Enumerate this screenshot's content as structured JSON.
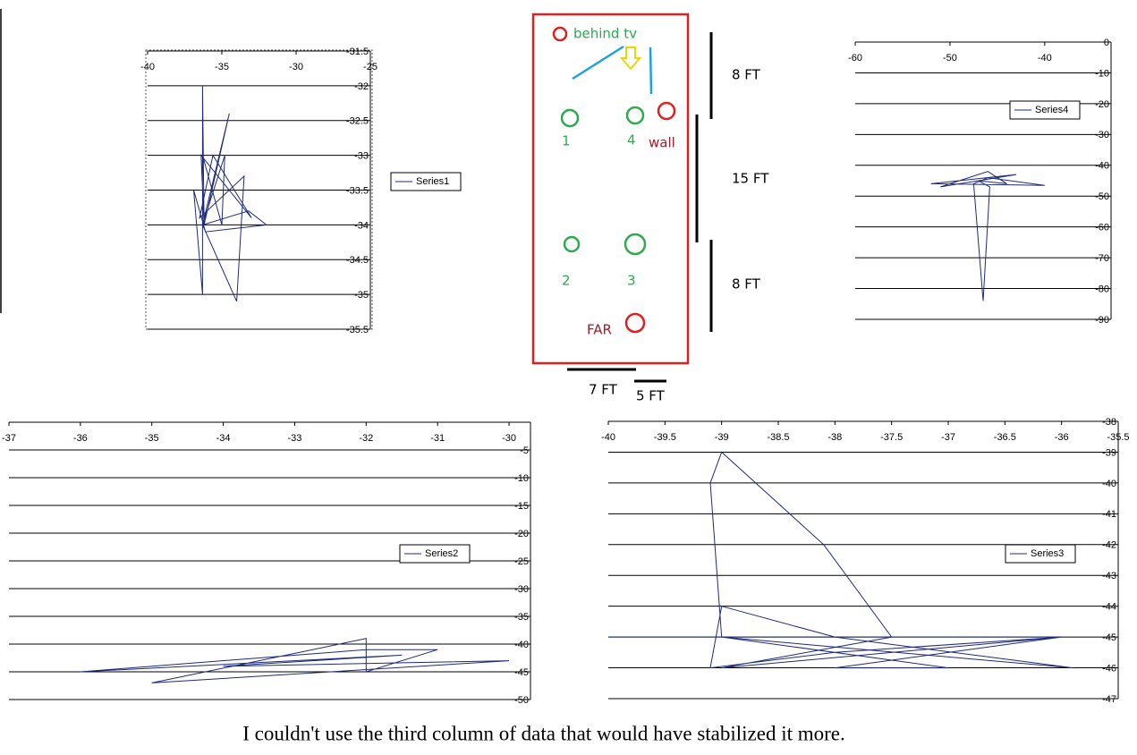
{
  "chart_data": [
    {
      "type": "line",
      "xlim": [
        -40,
        -25
      ],
      "xticks": [
        -40,
        -35,
        -30,
        -25
      ],
      "ylim": [
        -35.5,
        -31.5
      ],
      "yticks": [
        -31.5,
        -32,
        -32.5,
        -33,
        -33.5,
        -34,
        -34.5,
        -35,
        -35.5
      ],
      "grid": true,
      "series": [
        {
          "name": "Series1",
          "color": "#1f2a7a",
          "x": [
            -36.3,
            -36.3,
            -36.2,
            -36.4,
            -33.0,
            -35.6,
            -36.5,
            -33.5,
            -34.0,
            -36.3,
            -33.2,
            -32.0,
            -36.1,
            -36.9,
            -36.3,
            -36.3,
            -35.0,
            -34.8,
            -36.3,
            -34.5,
            -36.2
          ],
          "values": [
            -34.0,
            -32.0,
            -34.0,
            -33.0,
            -33.9,
            -33.0,
            -33.9,
            -33.3,
            -35.1,
            -34.0,
            -33.8,
            -34.0,
            -34.1,
            -33.5,
            -35.0,
            -33.0,
            -34.0,
            -33.0,
            -34.0,
            -32.4,
            -34.0
          ]
        }
      ]
    },
    {
      "type": "line",
      "xlim": [
        -37,
        -29.7
      ],
      "xticks": [
        -37,
        -36,
        -35,
        -34,
        -33,
        -32,
        -31,
        -30
      ],
      "ylim": [
        -50,
        0
      ],
      "yticks": [
        -5,
        -10,
        -15,
        -20,
        -25,
        -30,
        -35,
        -40,
        -45,
        -50
      ],
      "grid": true,
      "series": [
        {
          "name": "Series2",
          "color": "#1f2a7a",
          "x": [
            -36.0,
            -32.0,
            -31.0,
            -32.0,
            -32.0,
            -35.0,
            -30.0,
            -34.0,
            -31.5,
            -36.0
          ],
          "values": [
            -45.0,
            -41.0,
            -41.0,
            -45.0,
            -39.0,
            -47.0,
            -43.0,
            -44.0,
            -42.0,
            -45.0
          ]
        }
      ]
    },
    {
      "type": "line",
      "xlim": [
        -40,
        -35.5
      ],
      "xticks": [
        -40,
        -39.5,
        -39,
        -38.5,
        -38,
        -37.5,
        -37,
        -36.5,
        -36,
        -35.5
      ],
      "ylim": [
        -47,
        -38
      ],
      "yticks": [
        -38,
        -39,
        -40,
        -41,
        -42,
        -43,
        -44,
        -45,
        -46,
        -47
      ],
      "grid": true,
      "series": [
        {
          "name": "Series3",
          "color": "#1f2a7a",
          "x": [
            -40.0,
            -37.0,
            -39.0,
            -39.1,
            -39.0,
            -38.1,
            -37.5,
            -39.0,
            -36.0,
            -38.0,
            -37.0,
            -39.0,
            -35.9,
            -38.0,
            -39.0,
            -39.1,
            -38.0,
            -36.0,
            -39.0
          ],
          "values": [
            -45.0,
            -45.0,
            -45.0,
            -40.0,
            -39.0,
            -42.0,
            -45.0,
            -46.0,
            -45.0,
            -46.0,
            -46.0,
            -45.0,
            -46.0,
            -45.0,
            -44.0,
            -46.0,
            -45.5,
            -45.0,
            -45.0
          ]
        }
      ]
    },
    {
      "type": "line",
      "xlim": [
        -60,
        -33
      ],
      "xticks": [
        -60,
        -50,
        -40
      ],
      "ylim": [
        -90,
        0
      ],
      "yticks": [
        0,
        -10,
        -20,
        -30,
        -40,
        -50,
        -60,
        -70,
        -80,
        -90
      ],
      "grid": true,
      "series": [
        {
          "name": "Series4",
          "color": "#1f2a7a",
          "x": [
            -47.0,
            -43.0,
            -52.0,
            -40.0,
            -46.0,
            -47.5,
            -46.5,
            -45.8,
            -47.0,
            -51.0,
            -46.0,
            -44.0,
            -47.0
          ],
          "values": [
            -45.0,
            -43.0,
            -46.0,
            -46.5,
            -44.0,
            -46.0,
            -84.0,
            -47.0,
            -45.0,
            -47.0,
            -42.0,
            -46.0,
            -45.0
          ]
        }
      ]
    }
  ],
  "diagram": {
    "labels": [
      "behind tv",
      "1",
      "4",
      "wall",
      "2",
      "3",
      "FAR",
      "8 FT",
      "15 FT",
      "8 FT",
      "7 FT",
      "5 FT"
    ]
  },
  "caption": "I couldn't use the third column of data that would have stabilized it more."
}
